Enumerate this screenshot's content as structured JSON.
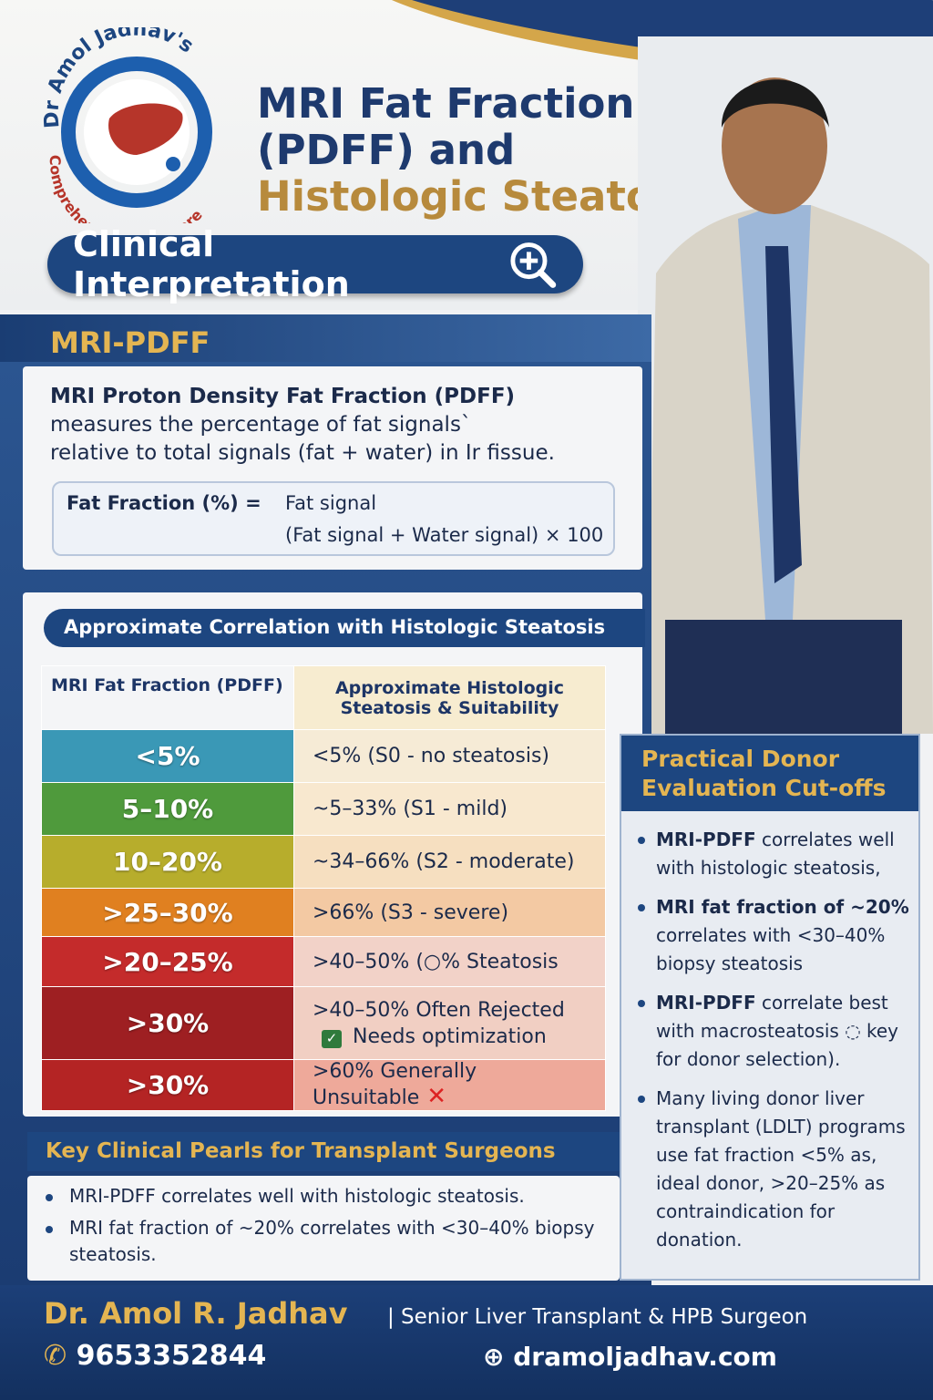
{
  "logo": {
    "arc_top": "Dr Amol Jadhav's",
    "arc_bottom": "Comprehensive Liver Care"
  },
  "title": {
    "line1": "MRI Fat Fraction",
    "line2": "(PDFF) and",
    "line3": "Histologic Steatosis –",
    "pill": "Clinical Interpretation",
    "pill_icon": "zoom-in-magnifier-icon"
  },
  "mri_pdff": {
    "heading": "MRI-PDFF",
    "def_bold": "MRI Proton Density Fat Fraction (PDFF)",
    "def_rest1": "measures the percentage of fat signals`",
    "def_rest2": "relative to total signals (fat + water) in Ir fissue.",
    "formula_label": "Fat Fraction (%) =",
    "numerator": "Fat signal",
    "denominator": "(Fat signal + Water signal) × 100"
  },
  "correlation": {
    "heading": "Approximate Correlation with Histologic Steatosis",
    "col1": "MRI Fat Fraction (PDFF)",
    "col2": "Approximate Histologic Steatosis & Suitability",
    "rows": [
      {
        "pdff": "<5%",
        "histo": "<5% (S0 - no steatosis)",
        "color": "#3a98b6",
        "tint": "#f6ebd6"
      },
      {
        "pdff": "5–10%",
        "histo": "~5–33% (S1 - mild)",
        "color": "#4f9a3c",
        "tint": "#f8e8cf"
      },
      {
        "pdff": "10–20%",
        "histo": "~34–66% (S2 - moderate)",
        "color": "#b7ad2c",
        "tint": "#f6dfc0"
      },
      {
        "pdff": ">25–30%",
        "histo": ">66% (S3 - severe)",
        "color": "#e08020",
        "tint": "#f3c9a3"
      },
      {
        "pdff": ">20–25%",
        "histo": ">40–50% (○% Steatosis",
        "color": "#c42b2b",
        "tint": "#f2d2c8"
      },
      {
        "pdff": ">30%",
        "histo": ">40–50% Often Rejected",
        "histo2": "Needs optimization",
        "color": "#9e1f22",
        "tint": "#f1cfc3"
      },
      {
        "pdff": ">30%",
        "histo": ">60% Generally Unsuitable",
        "color": "#b42424",
        "tint": "#eea99a"
      }
    ]
  },
  "donor": {
    "heading": "Practical Donor Evaluation Cut-offs",
    "items": [
      {
        "bold": "MRI-PDFF",
        "text": " correlates well with histologic steatosis,"
      },
      {
        "bold": "MRI fat fraction of ~20%",
        "text": " correlates with <30–40% biopsy steatosis"
      },
      {
        "bold": "MRI-PDFF",
        "text": " correlate best with macrosteatosis ◌ key for donor selection)."
      },
      {
        "bold": "",
        "text": "Many living donor liver transplant (LDLT) programs use fat fraction <5% as, ideal donor, >20–25% as contraindication for donation."
      }
    ]
  },
  "pearls": {
    "heading": "Key Clinical Pearls for Transplant Surgeons",
    "items": [
      "MRI-PDFF correlates well with histologic steatosis.",
      "MRI fat fraction of ~20% correlates with <30–40% biopsy steatosis."
    ]
  },
  "footer": {
    "name": "Dr. Amol R. Jadhav",
    "role": "| Senior Liver Transplant & HPB Surgeon",
    "phone": "9653352844",
    "website": "dramoljadhav.com"
  },
  "colors": {
    "navy": "#1d4680",
    "gold": "#e4b552"
  }
}
